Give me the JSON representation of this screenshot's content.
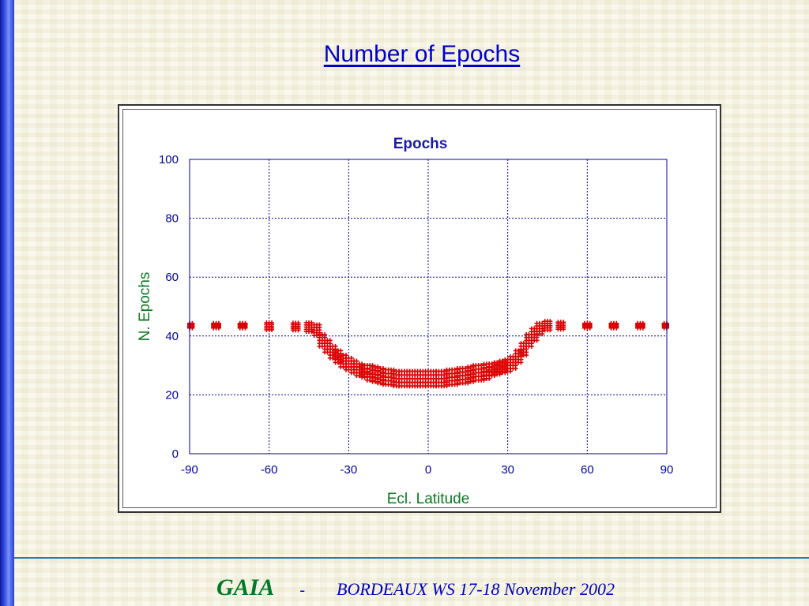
{
  "slide": {
    "title": "Number of Epochs",
    "footer_brand": "GAIA",
    "footer_dash": "-",
    "footer_event": "BORDEAUX  WS   17-18 November 2002"
  },
  "colors": {
    "accent_bar": "#1f35d6",
    "title": "#0000cc",
    "chart_title": "#1a1aa6",
    "axis_label": "#0a7a1e",
    "axis": "#0000a0",
    "series": "#dd0000",
    "footer_brand": "#007a2a",
    "footer_text": "#0000bb"
  },
  "chart_data": {
    "type": "scatter",
    "title": "Epochs",
    "xlabel": "Ecl. Latitude",
    "ylabel": "N. Epochs",
    "xlim": [
      -90,
      90
    ],
    "ylim": [
      0,
      100
    ],
    "xticks": [
      -90,
      -60,
      -30,
      0,
      30,
      60,
      90
    ],
    "yticks": [
      0,
      20,
      40,
      60,
      80,
      100
    ],
    "grid": true,
    "marker": "+",
    "series": [
      {
        "x": [
          -90,
          -80,
          -70,
          -60,
          -50,
          -45,
          -42,
          -40,
          -38,
          -36,
          -34,
          -32,
          -30,
          -28,
          -26,
          -24,
          -22,
          -20,
          -18,
          -16,
          -14,
          -12,
          -10,
          -8,
          -6,
          -4,
          -2,
          0,
          2,
          4,
          6,
          8,
          10,
          12,
          14,
          16,
          18,
          20,
          22,
          24,
          26,
          28,
          30,
          32,
          34,
          36,
          38,
          40,
          42,
          45,
          50,
          60,
          70,
          80,
          90
        ],
        "y": [
          43.5,
          43.5,
          43.5,
          43.3,
          43.2,
          43.0,
          42.0,
          38.5,
          36.5,
          34.5,
          33.0,
          31.5,
          30.5,
          29.5,
          28.5,
          28.0,
          27.5,
          27.0,
          26.5,
          26.0,
          26.0,
          25.5,
          25.5,
          25.5,
          25.5,
          25.5,
          25.5,
          25.5,
          25.5,
          25.5,
          25.5,
          26.0,
          26.0,
          26.5,
          26.5,
          27.0,
          27.5,
          27.5,
          28.0,
          28.5,
          29.0,
          29.5,
          30.0,
          31.0,
          33.0,
          35.5,
          38.5,
          40.5,
          42.5,
          43.5,
          43.5,
          43.5,
          43.5,
          43.5,
          43.5
        ],
        "spread": [
          0.8,
          0.8,
          0.8,
          1.2,
          1.2,
          1.5,
          1.8,
          2.0,
          2.0,
          2.0,
          2.0,
          2.0,
          2.0,
          2.0,
          2.0,
          2.0,
          2.5,
          2.5,
          2.5,
          2.5,
          2.5,
          2.5,
          2.5,
          2.5,
          2.5,
          2.5,
          2.5,
          2.5,
          2.5,
          2.5,
          2.5,
          2.5,
          2.5,
          2.5,
          2.5,
          2.5,
          2.5,
          2.5,
          2.5,
          2.0,
          2.0,
          2.0,
          2.0,
          2.0,
          2.0,
          2.0,
          2.0,
          2.0,
          1.8,
          1.5,
          1.2,
          0.8,
          0.8,
          0.8,
          0.8
        ]
      }
    ]
  }
}
